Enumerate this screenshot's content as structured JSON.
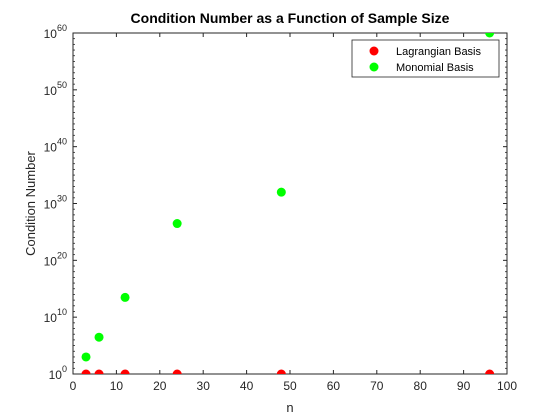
{
  "chart_data": {
    "type": "scatter",
    "title": "Condition Number as a Function of Sample Size",
    "xlabel": "n",
    "ylabel": "Condition Number",
    "xlim": [
      0,
      100
    ],
    "ylim": [
      1,
      1e+60
    ],
    "yscale": "log",
    "grid": false,
    "legend_position": "top-right",
    "x_ticks": [
      0,
      10,
      20,
      30,
      40,
      50,
      60,
      70,
      80,
      90,
      100
    ],
    "y_tick_exponents": [
      0,
      10,
      20,
      30,
      40,
      50,
      60
    ],
    "y_tick_base": "10",
    "series": [
      {
        "name": "Lagrangian Basis",
        "color": "#ff0000",
        "x": [
          3,
          6,
          12,
          24,
          48,
          96
        ],
        "y": [
          1,
          1,
          1,
          1,
          1,
          1
        ]
      },
      {
        "name": "Monomial Basis",
        "color": "#00ff00",
        "x": [
          3,
          6,
          12,
          24,
          48,
          96
        ],
        "y": [
          1000.0,
          3000000.0,
          30000000000000.0,
          3e+26,
          1e+32,
          1e+60
        ]
      }
    ]
  }
}
